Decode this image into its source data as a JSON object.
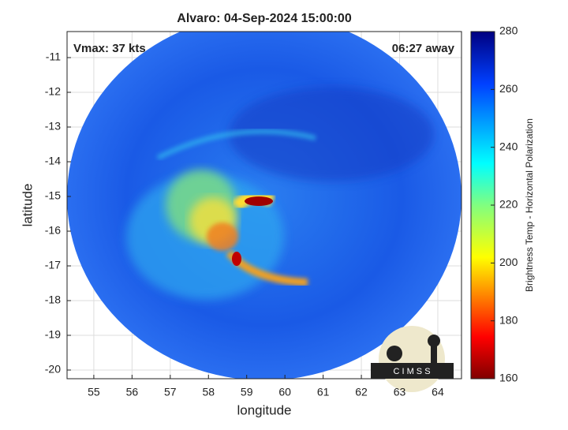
{
  "chart_data": {
    "type": "map",
    "title": "Alvaro: 04-Sep-2024 15:00:00",
    "xlabel": "longitude",
    "ylabel": "latitude",
    "annotations": [
      "Vmax: 37 kts",
      "06:27 away"
    ],
    "logo": "C I M S S",
    "xlim": [
      54.3,
      64.62
    ],
    "xticks": [
      55,
      56,
      57,
      58,
      59,
      60,
      61,
      62,
      63,
      64
    ],
    "ylim": [
      -20.25,
      -10.25
    ],
    "yticks": [
      -20,
      -19,
      -18,
      -17,
      -16,
      -15,
      -14,
      -13,
      -12,
      -11
    ],
    "grid": true,
    "colorbar": {
      "label": "Brightness Temp - Horizontal Polarization",
      "lim": [
        160,
        280
      ],
      "ticks": [
        160,
        180,
        200,
        220,
        240,
        260,
        280
      ]
    }
  }
}
